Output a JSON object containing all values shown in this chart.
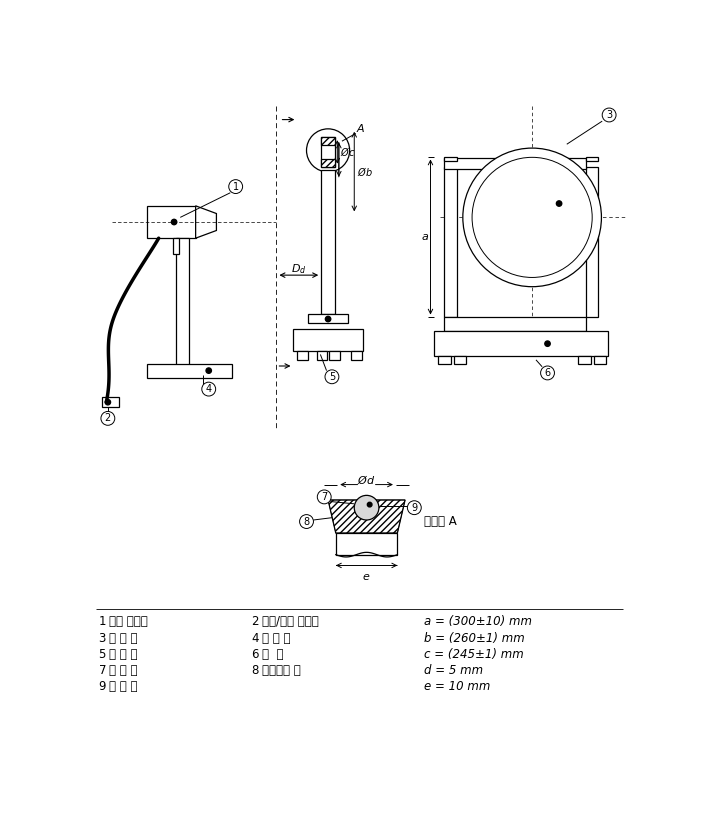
{
  "bg_color": "#ffffff",
  "line_color": "#000000",
  "legend_items": [
    {
      "num": "1",
      "korean": "모발 건조기",
      "col2_num": "2",
      "col2_korean": "켜짐/꺼짐 스위치",
      "formula": "a = (300±10) mm"
    },
    {
      "num": "3",
      "korean": "시 험 천",
      "col2_num": "4",
      "col2_korean": "스 탠 드",
      "formula": "b = (260±1) mm"
    },
    {
      "num": "5",
      "korean": "지 지 물",
      "col2_num": "6",
      "col2_korean": "저  울",
      "formula": "c = (245±1) mm"
    },
    {
      "num": "7",
      "korean": "고 무 링",
      "col2_num": "8",
      "col2_korean": "알루미늄 링",
      "formula": "d = 5 mm"
    },
    {
      "num": "9",
      "korean": "여 분 면",
      "col2_num": "",
      "col2_korean": "",
      "formula": "e = 10 mm"
    }
  ],
  "detail_label": "상세도 A"
}
